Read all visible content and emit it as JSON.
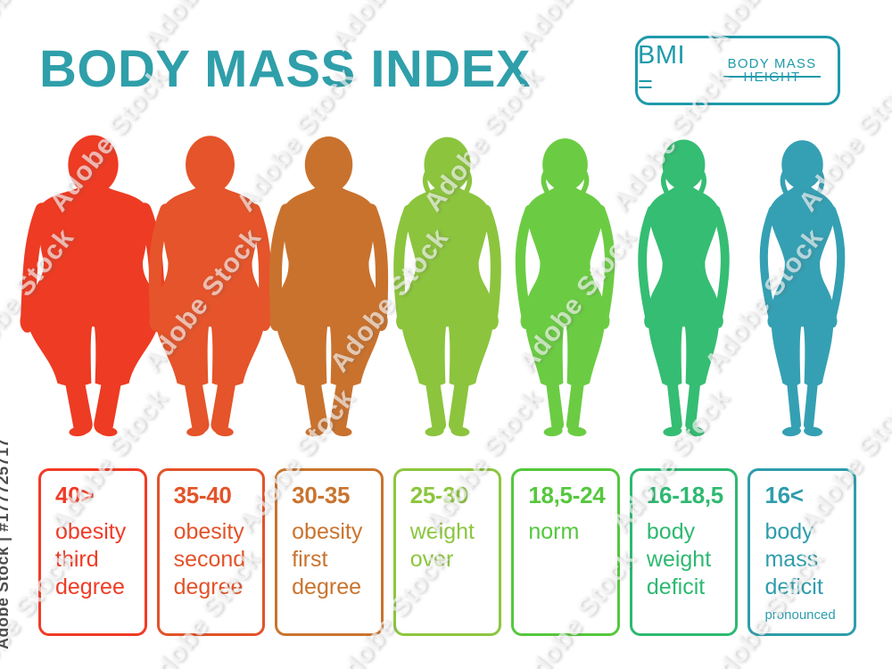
{
  "title": "BODY MASS INDEX",
  "theme": {
    "background": "#ffffff",
    "title_color": "#2f9faa",
    "accent_teal": "#1e9aaa"
  },
  "formula": {
    "lhs": "BMI =",
    "numerator": "BODY MASS",
    "denominator": "HEIGHT"
  },
  "watermark": {
    "tile_text": "Adobe Stock",
    "id_text": "Adobe Stock | #177725717"
  },
  "categories": [
    {
      "range": "40>",
      "label": "obesity third degree",
      "note": "",
      "label_color": "#f13b26",
      "figure_color": "#ee3b23",
      "figure": "obesity-3"
    },
    {
      "range": "35-40",
      "label": "obesity second degree",
      "note": "",
      "label_color": "#e35329",
      "figure_color": "#e5542a",
      "figure": "obesity-2"
    },
    {
      "range": "30-35",
      "label": "obesity first degree",
      "note": "",
      "label_color": "#c9742f",
      "figure_color": "#c9722e",
      "figure": "obesity-1"
    },
    {
      "range": "25-30",
      "label": "weight over",
      "note": "",
      "label_color": "#8cc63f",
      "figure_color": "#8cc43e",
      "figure": "overweight"
    },
    {
      "range": "18,5-24",
      "label": "norm",
      "note": "",
      "label_color": "#55c83d",
      "figure_color": "#6bcc43",
      "figure": "norm"
    },
    {
      "range": "16-18,5",
      "label": "body weight deficit",
      "note": "",
      "label_color": "#2eb971",
      "figure_color": "#35bd73",
      "figure": "deficit"
    },
    {
      "range": "16<",
      "label": "body mass deficit",
      "note": "pronounced",
      "label_color": "#2f9dac",
      "figure_color": "#35a0b3",
      "figure": "deficit-pronounced"
    }
  ]
}
